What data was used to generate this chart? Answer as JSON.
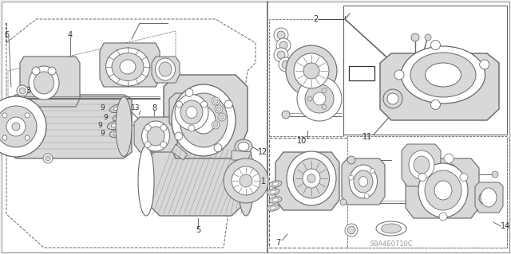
{
  "bg_color": "#f0f0f0",
  "panel_bg": "#e8e8e8",
  "white": "#ffffff",
  "line_dark": "#333333",
  "line_mid": "#666666",
  "line_light": "#999999",
  "fill_light": "#d8d8d8",
  "fill_mid": "#c0c0c0",
  "watermark": "S9A4E0710C",
  "fig_width": 6.4,
  "fig_height": 3.19,
  "dpi": 100
}
